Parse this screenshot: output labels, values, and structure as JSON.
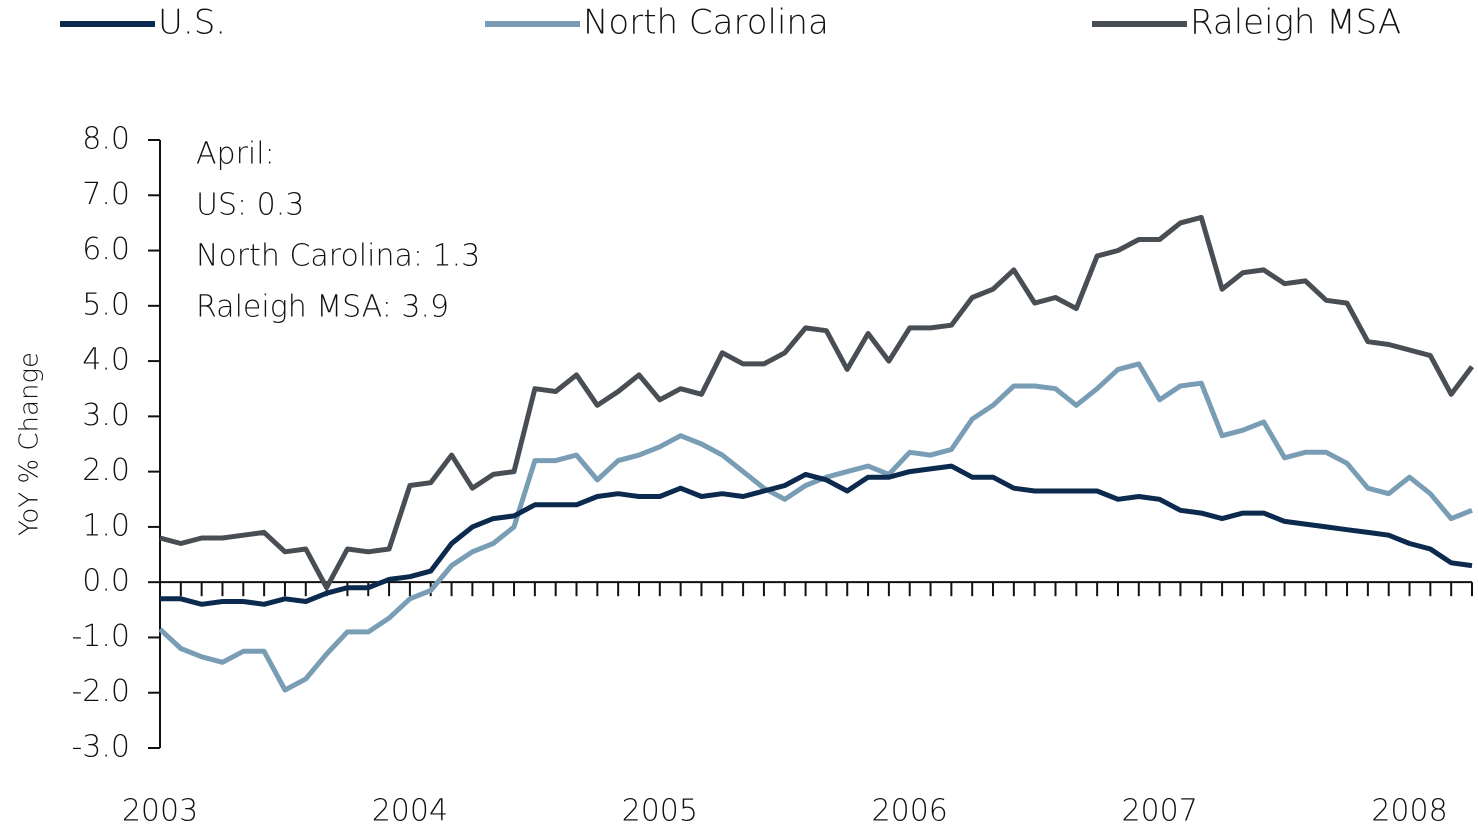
{
  "chart_data": {
    "type": "line",
    "legend_position": "top",
    "y_label": "YoY % Change",
    "annotation": [
      "April:",
      "US: 0.3",
      "North Carolina: 1.3",
      "Raleigh MSA: 3.9"
    ],
    "categories": [
      "2003",
      null,
      null,
      null,
      null,
      null,
      null,
      null,
      null,
      null,
      null,
      null,
      "2004",
      null,
      null,
      null,
      null,
      null,
      null,
      null,
      null,
      null,
      null,
      null,
      "2005",
      null,
      null,
      null,
      null,
      null,
      null,
      null,
      null,
      null,
      null,
      null,
      "2006",
      null,
      null,
      null,
      null,
      null,
      null,
      null,
      null,
      null,
      null,
      null,
      "2007",
      null,
      null,
      null,
      null,
      null,
      null,
      null,
      null,
      null,
      null,
      null,
      "2008",
      null,
      null,
      null
    ],
    "series": [
      {
        "name": "U.S.",
        "color": "#0b2a4e",
        "values": [
          -0.3,
          -0.3,
          -0.4,
          -0.35,
          -0.35,
          -0.4,
          -0.3,
          -0.35,
          -0.2,
          -0.1,
          -0.1,
          0.05,
          0.1,
          0.2,
          0.7,
          1.0,
          1.15,
          1.2,
          1.4,
          1.4,
          1.4,
          1.55,
          1.6,
          1.55,
          1.55,
          1.7,
          1.55,
          1.6,
          1.55,
          1.65,
          1.75,
          1.95,
          1.85,
          1.65,
          1.9,
          1.9,
          2.0,
          2.05,
          2.1,
          1.9,
          1.9,
          1.7,
          1.65,
          1.65,
          1.65,
          1.65,
          1.5,
          1.55,
          1.5,
          1.3,
          1.25,
          1.15,
          1.25,
          1.25,
          1.1,
          1.05,
          1.0,
          0.95,
          0.9,
          0.85,
          0.7,
          0.6,
          0.35,
          0.3
        ]
      },
      {
        "name": "North Carolina",
        "color": "#7a9db6",
        "values": [
          -0.85,
          -1.2,
          -1.35,
          -1.45,
          -1.25,
          -1.25,
          -1.95,
          -1.75,
          -1.3,
          -0.9,
          -0.9,
          -0.65,
          -0.3,
          -0.15,
          0.3,
          0.55,
          0.7,
          1.0,
          2.2,
          2.2,
          2.3,
          1.85,
          2.2,
          2.3,
          2.45,
          2.65,
          2.5,
          2.3,
          2.0,
          1.7,
          1.5,
          1.75,
          1.9,
          2.0,
          2.1,
          1.95,
          2.35,
          2.3,
          2.4,
          2.95,
          3.2,
          3.55,
          3.55,
          3.5,
          3.2,
          3.5,
          3.85,
          3.95,
          3.3,
          3.55,
          3.6,
          2.65,
          2.75,
          2.9,
          2.25,
          2.35,
          2.35,
          2.15,
          1.7,
          1.6,
          1.9,
          1.6,
          1.15,
          1.3
        ]
      },
      {
        "name": "Raleigh MSA",
        "color": "#494e54",
        "values": [
          0.8,
          0.7,
          0.8,
          0.8,
          0.85,
          0.9,
          0.55,
          0.6,
          -0.1,
          0.6,
          0.55,
          0.6,
          1.75,
          1.8,
          2.3,
          1.7,
          1.95,
          2.0,
          3.5,
          3.45,
          3.75,
          3.2,
          3.45,
          3.75,
          3.3,
          3.5,
          3.4,
          4.15,
          3.95,
          3.95,
          4.15,
          4.6,
          4.55,
          3.85,
          4.5,
          4.0,
          4.6,
          4.6,
          4.65,
          5.15,
          5.3,
          5.65,
          5.05,
          5.15,
          4.95,
          5.9,
          6.0,
          6.2,
          6.2,
          6.5,
          6.6,
          5.3,
          5.6,
          5.65,
          5.4,
          5.45,
          5.1,
          5.05,
          4.35,
          4.3,
          4.2,
          4.1,
          3.4,
          3.9
        ]
      }
    ],
    "ylim": [
      -3,
      8
    ],
    "yticks": [
      {
        "value": -3,
        "label": "-3.0"
      },
      {
        "value": -2,
        "label": "-2.0"
      },
      {
        "value": -1,
        "label": "-1.0"
      },
      {
        "value": 0,
        "label": "0.0"
      },
      {
        "value": 1,
        "label": "1.0"
      },
      {
        "value": 2,
        "label": "2.0"
      },
      {
        "value": 3,
        "label": "3.0"
      },
      {
        "value": 4,
        "label": "4.0"
      },
      {
        "value": 5,
        "label": "5.0"
      },
      {
        "value": 6,
        "label": "6.0"
      },
      {
        "value": 7,
        "label": "7.0"
      },
      {
        "value": 8,
        "label": "8.0"
      }
    ]
  }
}
